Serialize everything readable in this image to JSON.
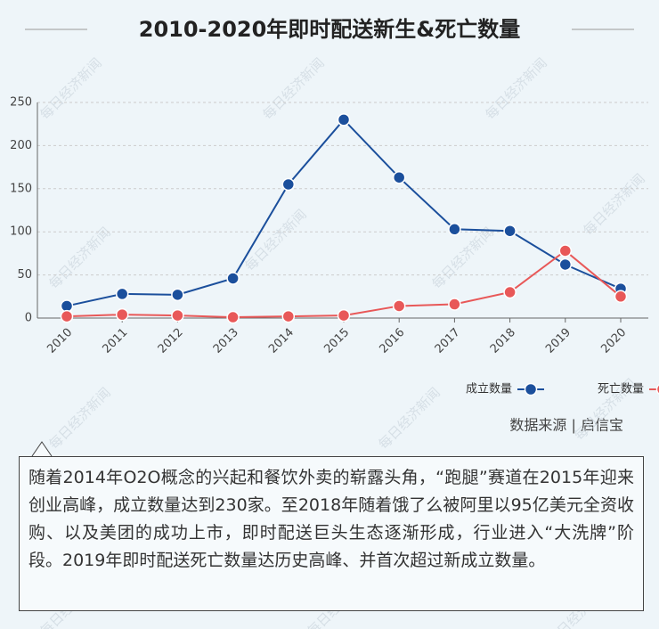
{
  "title": "2010-2020年即时配送新生&死亡数量",
  "chart_data": {
    "type": "line",
    "categories": [
      "2010",
      "2011",
      "2012",
      "2013",
      "2014",
      "2015",
      "2016",
      "2017",
      "2018",
      "2019",
      "2020"
    ],
    "series": [
      {
        "name": "成立数量",
        "color": "#1b4f9c",
        "values": [
          14,
          28,
          27,
          46,
          155,
          230,
          163,
          103,
          101,
          62,
          34
        ]
      },
      {
        "name": "死亡数量",
        "color": "#e85858",
        "values": [
          2,
          4,
          3,
          1,
          2,
          3,
          14,
          16,
          30,
          78,
          25
        ]
      }
    ],
    "ylim": [
      0,
      250
    ],
    "yticks": [
      0,
      50,
      100,
      150,
      200,
      250
    ],
    "grid": true,
    "legend": "bottom-right"
  },
  "source": "数据来源 | 启信宝",
  "watermark": "每日经济新闻",
  "note": "随着2014年O2O概念的兴起和餐饮外卖的崭露头角，“跑腿”赛道在2015年迎来创业高峰，成立数量达到230家。至2018年随着饿了么被阿里以95亿美元全资收购、以及美团的成功上市，即时配送巨头生态逐渐形成，行业进入“大洗牌”阶段。2019年即时配送死亡数量达历史高峰、并首次超过新成立数量。"
}
